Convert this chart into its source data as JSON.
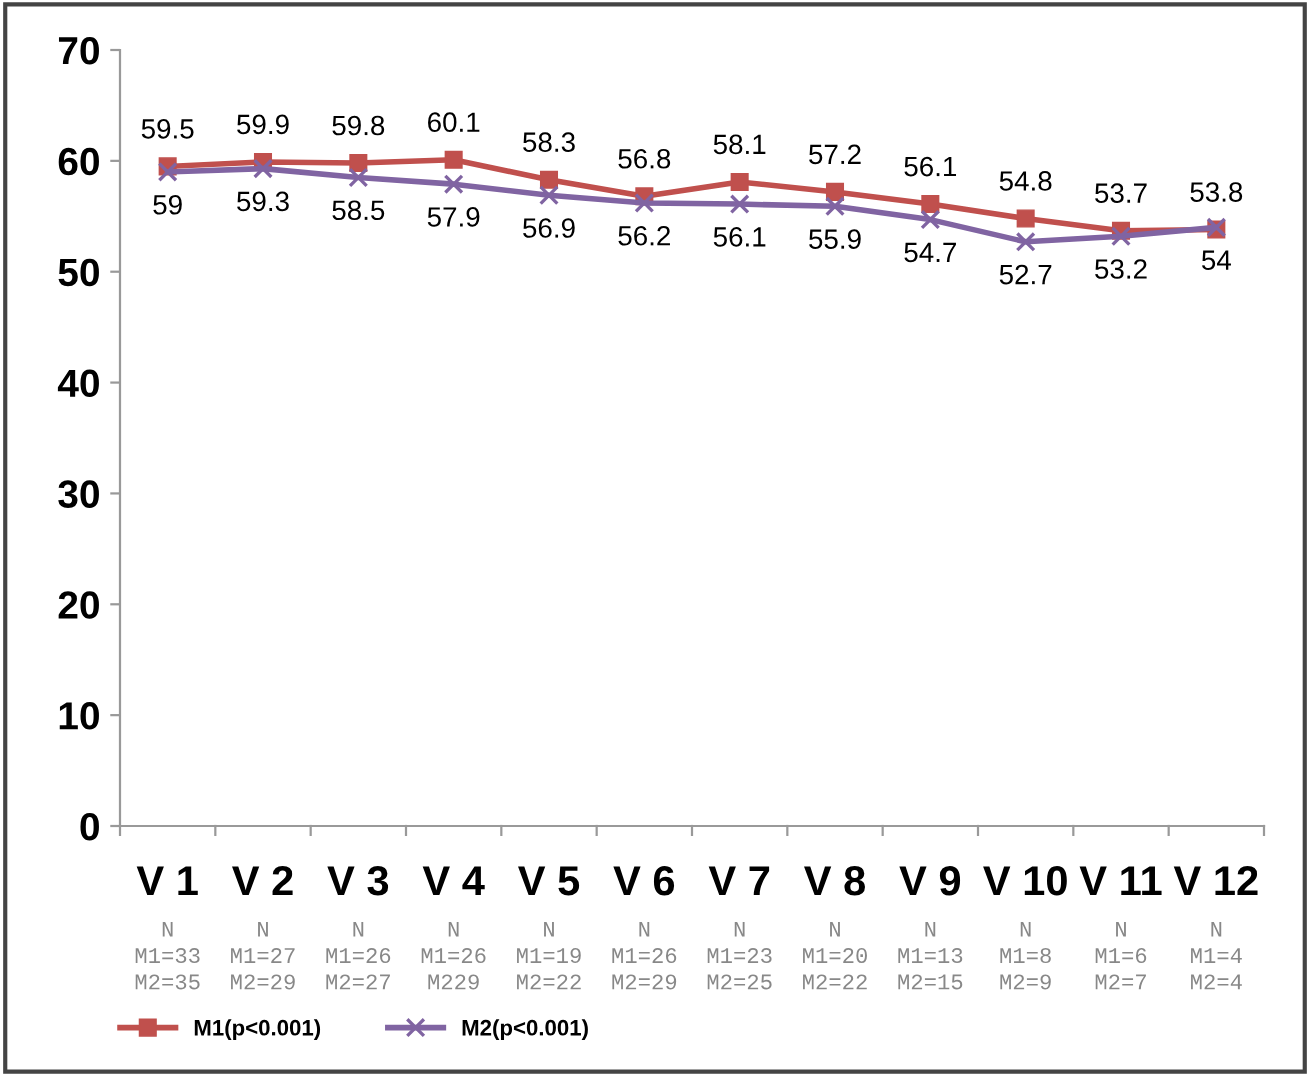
{
  "chart_data": {
    "type": "line",
    "categories": [
      "V 1",
      "V 2",
      "V 3",
      "V 4",
      "V 5",
      "V 6",
      "V 7",
      "V 8",
      "V 9",
      "V 10",
      "V 11",
      "V 12"
    ],
    "series": [
      {
        "name": "M1(p<0.001)",
        "color": "#c0504d",
        "marker": "square",
        "values": [
          59.5,
          59.9,
          59.8,
          60.1,
          58.3,
          56.8,
          58.1,
          57.2,
          56.1,
          54.8,
          53.7,
          53.8
        ]
      },
      {
        "name": "M2(p<0.001)",
        "color": "#8064a2",
        "marker": "cross",
        "values": [
          59,
          59.3,
          58.5,
          57.9,
          56.9,
          56.2,
          56.1,
          55.9,
          54.7,
          52.7,
          53.2,
          54
        ]
      }
    ],
    "ylim": [
      0,
      70
    ],
    "yticks": [
      0,
      10,
      20,
      30,
      40,
      50,
      60,
      70
    ],
    "data_labels": true,
    "grid": false,
    "legend": "bottom left",
    "line_style": "solid",
    "annotations": [
      "N\nM1=33\nM2=35",
      "N\nM1=27\nM2=29",
      "N\nM1=26\nM2=27",
      "N\nM1=26\nM229",
      "N\nM1=19\nM2=22",
      "N\nM1=26\nM2=29",
      "N\nM1=23\nM2=25",
      "N\nM1=20\nM2=22",
      "N\nM1=13\nM2=15",
      "N\nM1=8\nM2=9",
      "N\nM1=6\nM2=7",
      "N\nM1=4\nM2=4"
    ]
  }
}
